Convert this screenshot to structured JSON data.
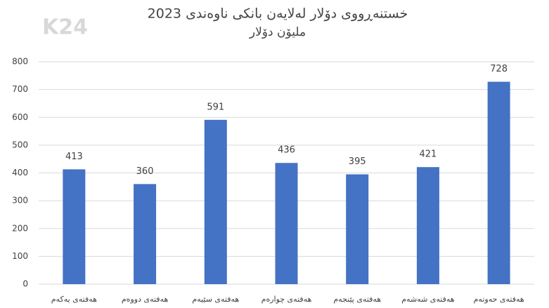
{
  "chart_data": {
    "type": "bar",
    "title": "خستنەڕووی دۆلار لەلایەن بانکی ناوەندی 2023",
    "subtitle": "ملیۆن دۆلار",
    "watermark": "K24",
    "categories": [
      "هەفتەی یەکەم",
      "هەفتەی دووەم",
      "هەفتەی سێیەم",
      "هەفتەی چوارەم",
      "هەفتەی پێنجەم",
      "هەفتەی شەشەم",
      "هەفتەی حەوتەم"
    ],
    "values": [
      413,
      360,
      591,
      436,
      395,
      421,
      728
    ],
    "color": "#4472c4",
    "ylim": [
      0,
      800
    ],
    "yticks": [
      0,
      100,
      200,
      300,
      400,
      500,
      600,
      700,
      800
    ],
    "grid": true
  }
}
